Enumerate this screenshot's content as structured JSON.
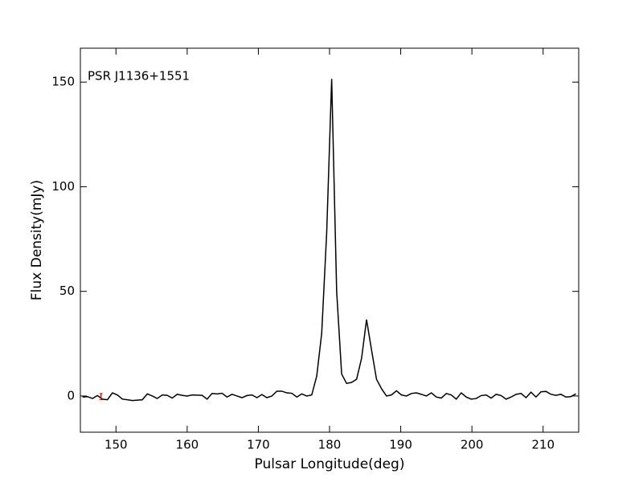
{
  "chart_data": {
    "type": "line",
    "annotation": "PSR J1136+1551",
    "x_label": "Pulsar Longitude(deg)",
    "y_label": "Flux Density(mJy)",
    "xlim": [
      145,
      215
    ],
    "xticks": [
      150,
      160,
      170,
      180,
      190,
      200,
      210
    ],
    "ylim": [
      -17.3,
      166.2
    ],
    "yticks": [
      0,
      50,
      100,
      150
    ],
    "x": [
      145.3,
      146.0,
      146.7,
      147.4,
      148.1,
      148.8,
      149.5,
      150.2,
      150.9,
      151.6,
      152.3,
      153.0,
      153.7,
      154.4,
      155.1,
      155.8,
      156.5,
      157.2,
      157.9,
      158.6,
      159.3,
      160.0,
      160.7,
      161.4,
      162.1,
      162.8,
      163.5,
      164.2,
      164.9,
      165.6,
      166.3,
      167.0,
      167.7,
      168.4,
      169.1,
      169.8,
      170.5,
      171.2,
      171.9,
      172.6,
      173.3,
      174.0,
      174.7,
      175.4,
      176.1,
      176.8,
      177.5,
      178.2,
      178.9,
      179.6,
      180.3,
      181.0,
      181.7,
      182.4,
      183.1,
      183.8,
      184.5,
      185.2,
      185.9,
      186.6,
      187.3,
      188.0,
      188.7,
      189.4,
      190.1,
      190.8,
      191.5,
      192.2,
      192.9,
      193.6,
      194.3,
      195.0,
      195.7,
      196.4,
      197.1,
      197.8,
      198.5,
      199.2,
      199.9,
      200.6,
      201.3,
      202.0,
      202.7,
      203.4,
      204.1,
      204.8,
      205.5,
      206.2,
      206.9,
      207.6,
      208.3,
      209.0,
      209.7,
      210.4,
      211.1,
      211.8,
      212.5,
      213.2,
      213.9,
      214.6
    ],
    "series": [
      {
        "color": "#000000",
        "values": [
          -0.5,
          -0.3,
          -1.2,
          0.2,
          -1.5,
          -1.8,
          1.5,
          0.5,
          -1.5,
          -1.8,
          -2.2,
          -2.0,
          -1.8,
          1.0,
          0.0,
          -1.2,
          0.5,
          0.3,
          -1.0,
          0.8,
          0.3,
          0.0,
          0.5,
          0.4,
          0.3,
          -1.5,
          1.2,
          1.0,
          1.3,
          -0.5,
          0.8,
          0.0,
          -0.8,
          0.2,
          0.5,
          -0.8,
          0.7,
          -0.8,
          0.0,
          2.3,
          2.3,
          1.5,
          1.3,
          -0.5,
          1.0,
          0.0,
          0.5,
          9.5,
          30,
          78,
          151.5,
          50,
          10.5,
          6,
          6.5,
          8,
          18,
          36.5,
          22,
          8,
          3.5,
          0,
          0.5,
          2.5,
          0.5,
          0,
          1.2,
          1.5,
          0.8,
          0,
          1.5,
          -0.5,
          -1.0,
          1.2,
          0.5,
          -1.5,
          1.5,
          -0.5,
          -1.5,
          -1.2,
          0.2,
          0.5,
          -1.0,
          0.8,
          0.2,
          -1.5,
          -0.5,
          0.8,
          1.2,
          -0.8,
          1.8,
          -0.5,
          2.0,
          2.2,
          0.8,
          0.3,
          0.8,
          -0.5,
          -0.3,
          1.0
        ]
      }
    ],
    "error_bar": {
      "x": 147.9,
      "value": -0.3,
      "error": 1.5,
      "color": "#ff0000"
    }
  }
}
